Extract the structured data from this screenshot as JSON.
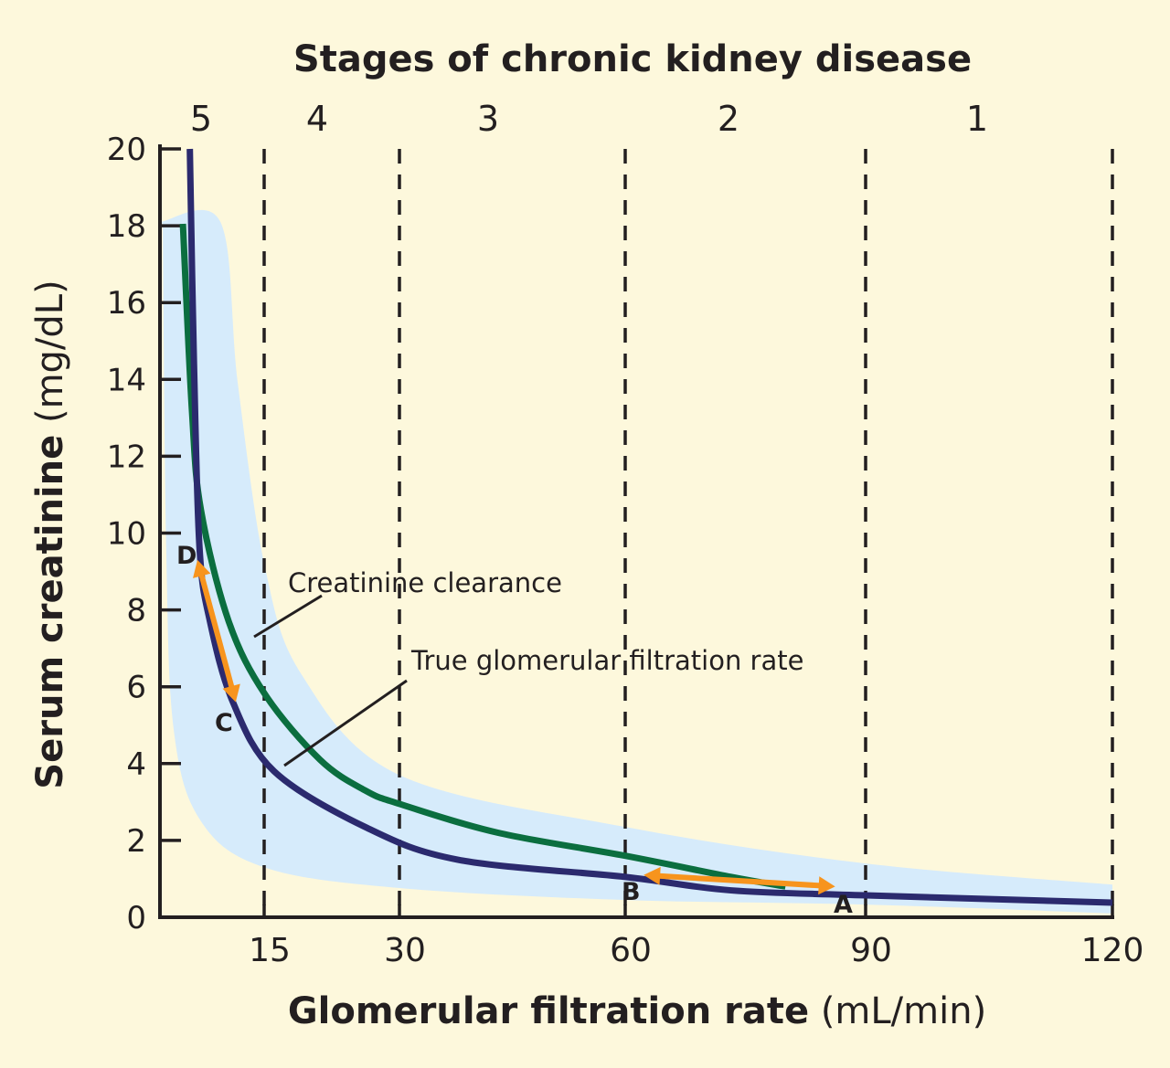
{
  "chart_data": {
    "type": "line",
    "title": "Stages of chronic kidney disease",
    "stages": [
      {
        "label": "5",
        "from": 0,
        "to": 15
      },
      {
        "label": "4",
        "from": 15,
        "to": 30
      },
      {
        "label": "3",
        "from": 30,
        "to": 60
      },
      {
        "label": "2",
        "from": 60,
        "to": 90
      },
      {
        "label": "1",
        "from": 90,
        "to": 120
      }
    ],
    "xlabel_bold": "Glomerular filtration rate",
    "xlabel_unit": "(mL/min)",
    "ylabel_bold": "Serum creatinine",
    "ylabel_unit": "(mg/dL)",
    "xticks": [
      15,
      30,
      60,
      90,
      120
    ],
    "yticks": [
      0,
      2,
      4,
      6,
      8,
      10,
      12,
      14,
      16,
      18,
      20
    ],
    "ylim": [
      0,
      20
    ],
    "xlim": [
      0,
      120
    ],
    "stage_boundaries_dashed": [
      15,
      30,
      60,
      90,
      120
    ],
    "series": [
      {
        "name": "True glomerular filtration rate",
        "color": "#2b2a6e",
        "x": [
          4.3,
          4.9,
          5.7,
          7.2,
          10.5,
          16.1,
          26.2,
          37.7,
          60,
          73.2,
          90,
          120
        ],
        "y": [
          20,
          14.4,
          9.6,
          7.7,
          5.6,
          3.8,
          2.35,
          1.5,
          1.05,
          0.7,
          0.57,
          0.38
        ]
      },
      {
        "name": "Creatinine clearance",
        "color": "#0b6e3f",
        "x": [
          3.3,
          4.6,
          5.9,
          9.9,
          15.1,
          21.2,
          26.2,
          30,
          43.1,
          60,
          73.2,
          80
        ],
        "y": [
          18.05,
          13.2,
          10.6,
          7.7,
          5.8,
          4.1,
          3.3,
          2.95,
          2.2,
          1.6,
          1.05,
          0.8
        ]
      }
    ],
    "band": {
      "color": "#d6ebfb",
      "upper": {
        "x": [
          0,
          8.7,
          11.2,
          15.1,
          19.2,
          30,
          60,
          90,
          120
        ],
        "y": [
          18.1,
          18.1,
          13.9,
          9.1,
          6.3,
          3.7,
          2.35,
          1.4,
          0.85
        ]
      },
      "lower": {
        "x": [
          120,
          90,
          60,
          30,
          15,
          5.9,
          2,
          0.9,
          0.4
        ],
        "y": [
          0.1,
          0.33,
          0.45,
          0.76,
          1.3,
          2.5,
          4.85,
          9.6,
          18.05
        ]
      }
    },
    "arrows": [
      {
        "from_label": "D",
        "to_label": "C",
        "from": [
          5.4,
          9.3
        ],
        "to": [
          10.9,
          5.6
        ]
      },
      {
        "from_label": "B",
        "to_label": "A",
        "from": [
          62.3,
          1.1
        ],
        "to": [
          86.2,
          0.8
        ]
      }
    ],
    "arrow_color": "#f7941d",
    "point_labels": [
      "D",
      "C",
      "B",
      "A"
    ],
    "annotations": [
      "Creatinine clearance",
      "True glomerular filtration rate"
    ],
    "background": "#fdf8dc"
  }
}
